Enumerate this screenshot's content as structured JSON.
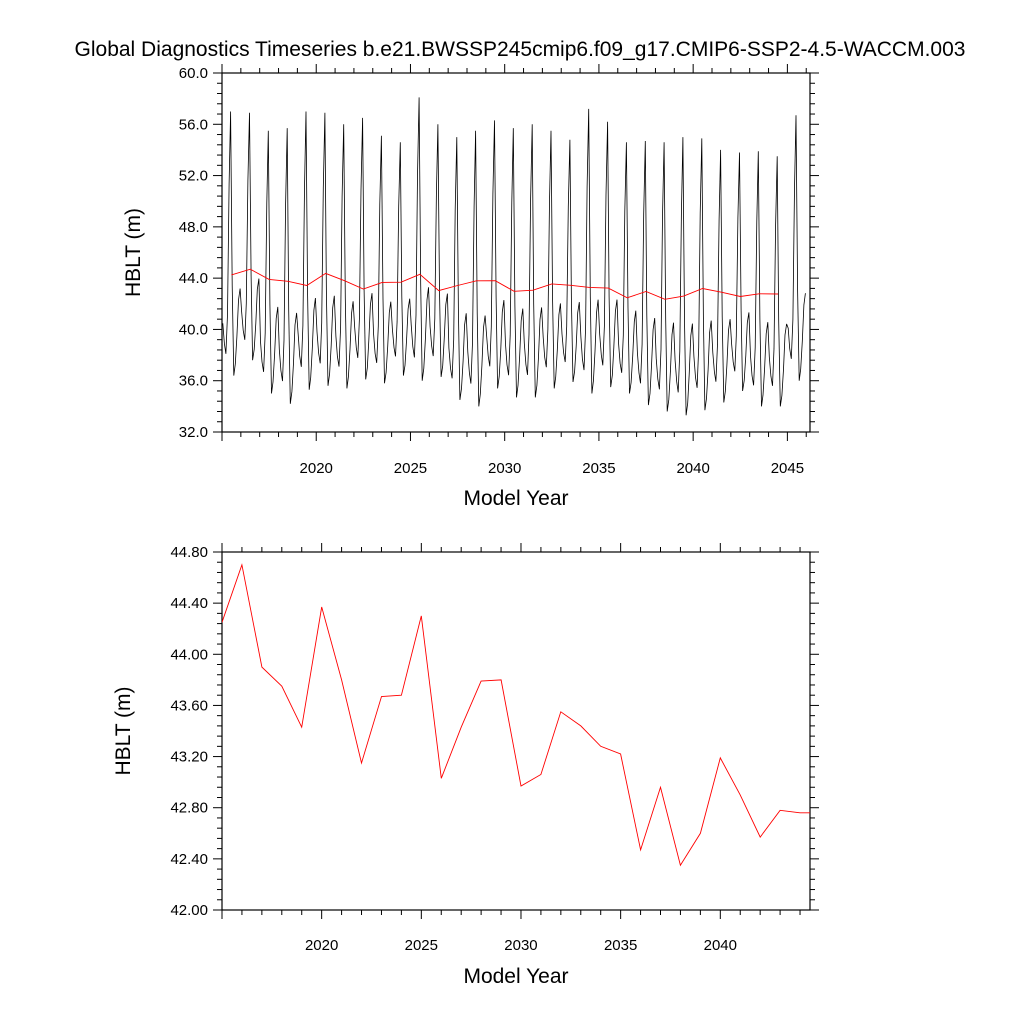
{
  "title": "Global Diagnostics Timeseries b.e21.BWSSP245cmip6.f09_g17.CMIP6-SSP2-4.5-WACCM.003",
  "chart_data": [
    {
      "type": "line",
      "xlabel": "Model Year",
      "ylabel": "HBLT (m)",
      "xlim": [
        2015,
        2046.2
      ],
      "ylim": [
        32.0,
        60.0
      ],
      "x_ticks": [
        2020,
        2025,
        2030,
        2035,
        2040,
        2045
      ],
      "y_ticks": [
        "32.0",
        "36.0",
        "40.0",
        "44.0",
        "48.0",
        "52.0",
        "56.0",
        "60.0"
      ],
      "grid": false,
      "monthly_series": {
        "color": "#000000",
        "start_year": 2015,
        "monthly_pattern": [
          40.4,
          39.0,
          38.3,
          41.0,
          50.0,
          55.0,
          43.0,
          36.8,
          37.6,
          39.5,
          42.0,
          42.8
        ],
        "annual_peaks": [
          57.0,
          56.9,
          55.5,
          55.7,
          57.0,
          56.9,
          56.0,
          56.5,
          55.1,
          54.6,
          58.1,
          56.0,
          55.0,
          55.5,
          56.3,
          55.7,
          56.0,
          55.5,
          54.8,
          57.2,
          56.2,
          54.6,
          54.7,
          54.6,
          55.0,
          54.9,
          54.0,
          53.8,
          53.9,
          53.5,
          56.7
        ],
        "annual_minima": [
          36.4,
          37.6,
          35.0,
          34.2,
          35.3,
          35.6,
          35.4,
          36.1,
          35.8,
          36.4,
          36.0,
          36.3,
          34.5,
          34.0,
          35.4,
          34.7,
          34.7,
          35.4,
          35.9,
          35.0,
          35.5,
          35.0,
          34.1,
          33.6,
          33.3,
          33.7,
          34.3,
          35.2,
          34.0,
          34.0,
          36.0
        ]
      },
      "series": [
        {
          "color": "#ff0000",
          "x": [
            2015.5,
            2016.5,
            2017.5,
            2018.5,
            2019.5,
            2020.5,
            2021.5,
            2022.5,
            2023.5,
            2024.5,
            2025.5,
            2026.5,
            2027.5,
            2028.5,
            2029.5,
            2030.5,
            2031.5,
            2032.5,
            2033.5,
            2034.5,
            2035.5,
            2036.5,
            2037.5,
            2038.5,
            2039.5,
            2040.5,
            2041.5,
            2042.5,
            2043.5,
            2044.5
          ],
          "values": [
            44.25,
            44.7,
            43.9,
            43.75,
            43.43,
            44.37,
            43.8,
            43.15,
            43.67,
            43.68,
            44.3,
            43.03,
            43.43,
            43.79,
            43.8,
            42.97,
            43.06,
            43.55,
            43.44,
            43.28,
            43.22,
            42.47,
            42.96,
            42.35,
            42.6,
            43.19,
            42.9,
            42.57,
            42.78,
            42.76
          ]
        }
      ]
    },
    {
      "type": "line",
      "xlabel": "Model Year",
      "ylabel": "HBLT (m)",
      "xlim": [
        2015,
        2044.5
      ],
      "ylim": [
        42.0,
        44.8
      ],
      "x_ticks": [
        2020,
        2025,
        2030,
        2035,
        2040
      ],
      "y_ticks": [
        "42.00",
        "42.40",
        "42.80",
        "43.20",
        "43.60",
        "44.00",
        "44.40",
        "44.80"
      ],
      "grid": false,
      "series": [
        {
          "color": "#ff0000",
          "x": [
            2015.0,
            2016.0,
            2017.0,
            2018.0,
            2019.0,
            2020.0,
            2021.0,
            2022.0,
            2023.0,
            2024.0,
            2025.0,
            2026.0,
            2027.0,
            2028.0,
            2029.0,
            2030.0,
            2031.0,
            2032.0,
            2033.0,
            2034.0,
            2035.0,
            2036.0,
            2037.0,
            2038.0,
            2039.0,
            2040.0,
            2041.0,
            2042.0,
            2043.0,
            2044.0,
            2044.5
          ],
          "values": [
            44.25,
            44.7,
            43.9,
            43.75,
            43.43,
            44.37,
            43.8,
            43.15,
            43.67,
            43.68,
            44.3,
            43.03,
            43.43,
            43.79,
            43.8,
            42.97,
            43.06,
            43.55,
            43.44,
            43.28,
            43.22,
            42.47,
            42.96,
            42.35,
            42.6,
            43.19,
            42.9,
            42.57,
            42.78,
            42.76,
            42.76
          ]
        }
      ]
    }
  ]
}
